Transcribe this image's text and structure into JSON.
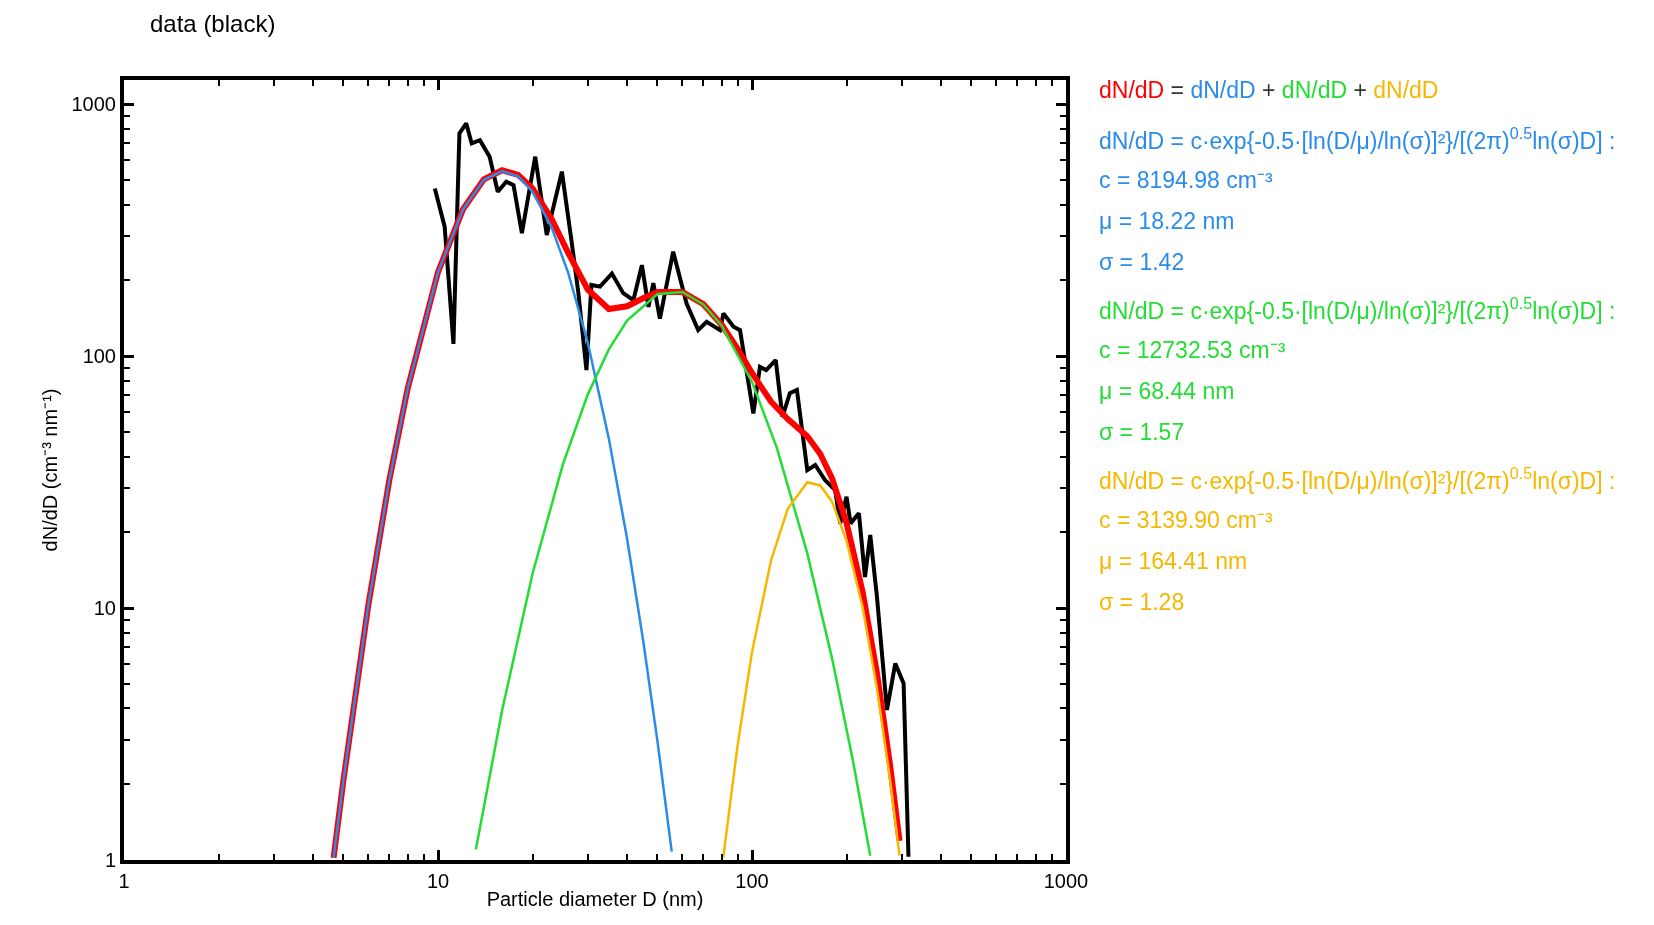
{
  "chart_data": {
    "type": "line",
    "title": "data (black)",
    "xlabel": "Particle diameter D (nm)",
    "ylabel": "dN/dD (cm⁻³ nm⁻¹)",
    "log": "xy",
    "xlim": [
      1,
      1000
    ],
    "xticks": [
      1,
      10,
      100,
      1000
    ],
    "ylim": [
      1,
      1250
    ],
    "yticks": [
      1,
      10,
      100,
      1000
    ],
    "legend": false,
    "marker": "none",
    "line_style": "solid",
    "series": [
      {
        "color": "#000000",
        "x": [
          9.77,
          10.5,
          11.2,
          11.7,
          12.3,
          12.8,
          13.6,
          14.6,
          15.5,
          16.5,
          17.4,
          18.5,
          20.4,
          22.2,
          24.8,
          26.6,
          28.0,
          29.7,
          30.8,
          32.8,
          35.8,
          38.9,
          41.9,
          44.6,
          46.8,
          48.5,
          50.9,
          56.1,
          61.9,
          67.4,
          71.7,
          79.1,
          81.1,
          87.3,
          91.6,
          101,
          106,
          111,
          119,
          125,
          132,
          139,
          150,
          159,
          171,
          184,
          191,
          200,
          206,
          219,
          229,
          238,
          250,
          269,
          286,
          304,
          315
        ],
        "values": [
          464,
          327,
          112,
          768,
          841,
          700,
          721,
          620,
          450,
          493,
          478,
          308,
          620,
          303,
          541,
          289,
          178,
          88.1,
          192,
          189,
          213,
          178,
          167,
          230,
          157,
          195,
          141,
          260,
          162,
          127,
          137,
          127,
          148,
          131,
          127,
          59.3,
          90.8,
          88.1,
          96.6,
          57.5,
          71.3,
          73.5,
          35.3,
          37.0,
          32.2,
          29.4,
          21.7,
          27.7,
          21.7,
          23.8,
          13.3,
          19.5,
          11.1,
          3.94,
          6.03,
          5.02,
          1.03
        ]
      },
      {
        "name": "dN/dD",
        "color": "#ff0000",
        "x": [
          4.65,
          5,
          6,
          7,
          8,
          10,
          12,
          14,
          16,
          18,
          20,
          23,
          26,
          30,
          35,
          40,
          45,
          50,
          60,
          70,
          80,
          90,
          100,
          115,
          130,
          150,
          165,
          180,
          200,
          225,
          250,
          275,
          295
        ],
        "values": [
          1.02,
          2.08,
          10.3,
          32.3,
          74.2,
          215.9,
          382.5,
          504,
          548,
          525,
          464,
          351,
          257,
          184,
          154,
          158,
          170,
          180,
          180,
          161,
          133.5,
          107,
          85.8,
          66.0,
          56.3,
          48.1,
          40.9,
          32.7,
          21.8,
          11.6,
          5.53,
          2.4,
          1.19
        ]
      },
      {
        "name": "dN/dD",
        "color": "#2a8cea",
        "x": [
          4.65,
          5,
          6,
          7,
          8,
          10,
          12,
          14,
          16,
          18,
          20,
          23,
          26,
          30,
          35,
          40,
          45,
          50,
          55.5
        ],
        "values": [
          1.02,
          2.08,
          10.3,
          32.3,
          74.2,
          215.8,
          382,
          502,
          544,
          517.6,
          450,
          325,
          214,
          113,
          47.1,
          18.9,
          7.46,
          2.96,
          1.08
        ]
      },
      {
        "name": "dN/dD",
        "color": "#22dd33",
        "x": [
          13.2,
          16,
          20,
          25,
          30,
          35,
          40,
          50,
          60,
          70,
          80,
          100,
          120,
          150,
          180,
          210,
          238
        ],
        "values": [
          1.1,
          3.92,
          13.7,
          37.3,
          70.6,
          106.5,
          138.6,
          176.7,
          179.9,
          160.7,
          132.6,
          79.1,
          43.3,
          16.5,
          6.29,
          2.45,
          1.04
        ]
      },
      {
        "name": "dN/dD",
        "color": "#f5b800",
        "x": [
          81,
          90,
          100,
          115,
          130,
          150,
          165,
          180,
          200,
          225,
          250,
          275,
          295
        ],
        "values": [
          1.025,
          2.86,
          6.68,
          15.5,
          24.8,
          31.6,
          30.7,
          26.4,
          18.5,
          10.1,
          4.8,
          2.1,
          1.04
        ]
      }
    ],
    "annotations": [
      "=",
      "+",
      "+",
      "dN/dD = c·exp{-0.5·[ln(D/μ)/ln(σ)]²}/[(2π)$^{0.5}$ln(σ)D] :",
      "c = 8194.98 cm⁻³",
      "μ = 18.22 nm",
      "σ = 1.42",
      "dN/dD = c·exp{-0.5·[ln(D/μ)/ln(σ)]²}/[(2π)$^{0.5}$ln(σ)D] :",
      "c = 12732.53 cm⁻³",
      "μ = 68.44 nm",
      "σ = 1.57",
      "dN/dD = c·exp{-0.5·[ln(D/μ)/ln(σ)]²}/[(2π)$^{0.5}$ln(σ)D] :",
      "c = 3139.90 cm⁻³",
      "μ = 164.41 nm",
      "σ = 1.28"
    ]
  }
}
